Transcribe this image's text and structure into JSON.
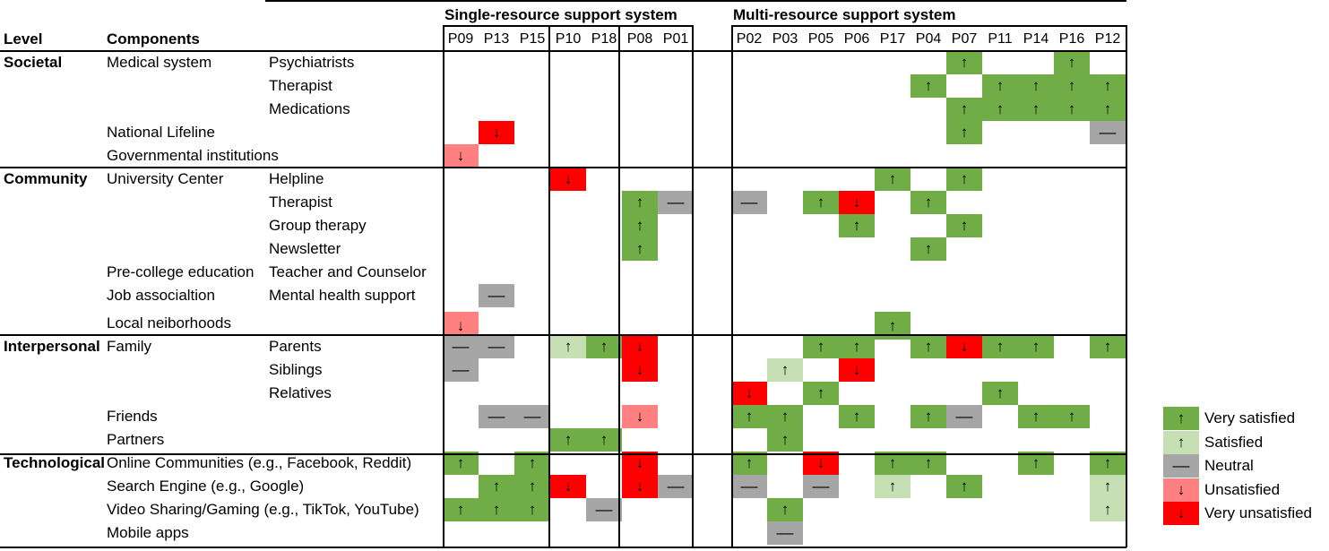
{
  "groups": {
    "single": "Single-resource support system",
    "multi": "Multi-resource support system"
  },
  "headers": {
    "level": "Level",
    "components": "Components"
  },
  "participants": [
    "P09",
    "P13",
    "P15",
    "P10",
    "P18",
    "P08",
    "P01",
    "P02",
    "P03",
    "P05",
    "P06",
    "P17",
    "P04",
    "P07",
    "P11",
    "P14",
    "P16",
    "P12"
  ],
  "levels": [
    "Societal",
    "Community",
    "Interpersonal",
    "Technological"
  ],
  "rows": [
    {
      "level": "Societal",
      "component": "Medical system",
      "sub": "Psychiatrists"
    },
    {
      "level": "",
      "component": "",
      "sub": "Therapist"
    },
    {
      "level": "",
      "component": "",
      "sub": "Medications"
    },
    {
      "level": "",
      "component": "National Lifeline",
      "sub": ""
    },
    {
      "level": "",
      "component": "Governmental institutions",
      "sub": ""
    },
    {
      "level": "Community",
      "component": "University Center",
      "sub": "Helpline"
    },
    {
      "level": "",
      "component": "",
      "sub": "Therapist"
    },
    {
      "level": "",
      "component": "",
      "sub": "Group therapy"
    },
    {
      "level": "",
      "component": "",
      "sub": "Newsletter"
    },
    {
      "level": "",
      "component": "Pre-college education",
      "sub": "Teacher and Counselor"
    },
    {
      "level": "",
      "component": "Job associaltion",
      "sub": "Mental health support"
    },
    {
      "level": "",
      "component": "Local neiborhoods",
      "sub": ""
    },
    {
      "level": "Interpersonal",
      "component": "Family",
      "sub": "Parents"
    },
    {
      "level": "",
      "component": "",
      "sub": "Siblings"
    },
    {
      "level": "",
      "component": "",
      "sub": "Relatives"
    },
    {
      "level": "",
      "component": "Friends",
      "sub": ""
    },
    {
      "level": "",
      "component": "Partners",
      "sub": ""
    },
    {
      "level": "Technological",
      "component": "Online Communities (e.g., Facebook, Reddit)",
      "sub": ""
    },
    {
      "level": "",
      "component": "Search Engine (e.g., Google)",
      "sub": ""
    },
    {
      "level": "",
      "component": "Video Sharing/Gaming (e.g., TikTok, YouTube)",
      "sub": ""
    },
    {
      "level": "",
      "component": "Mobile apps",
      "sub": ""
    }
  ],
  "ratings": {
    "vs": {
      "symbol": "↑",
      "color": "#70ad47",
      "label": "Very satisfied"
    },
    "s": {
      "symbol": "↑",
      "color": "#c6e0b4",
      "label": "Satisfied"
    },
    "n": {
      "symbol": "‒‒",
      "color": "#a6a6a6",
      "label": "Neutral"
    },
    "u": {
      "symbol": "↓",
      "color": "#ff8080",
      "label": "Unsatisfied"
    },
    "vu": {
      "symbol": "↓",
      "color": "#ff0000",
      "label": "Very unsatisfied"
    }
  },
  "legend_order": [
    "vs",
    "s",
    "n",
    "u",
    "vu"
  ],
  "cells": [
    {
      "r": 0,
      "p": "P07",
      "v": "vs"
    },
    {
      "r": 0,
      "p": "P16",
      "v": "vs"
    },
    {
      "r": 1,
      "p": "P04",
      "v": "vs"
    },
    {
      "r": 1,
      "p": "P11",
      "v": "vs"
    },
    {
      "r": 1,
      "p": "P14",
      "v": "vs"
    },
    {
      "r": 1,
      "p": "P16",
      "v": "vs"
    },
    {
      "r": 1,
      "p": "P12",
      "v": "vs"
    },
    {
      "r": 2,
      "p": "P07",
      "v": "vs"
    },
    {
      "r": 2,
      "p": "P11",
      "v": "vs"
    },
    {
      "r": 2,
      "p": "P14",
      "v": "vs"
    },
    {
      "r": 2,
      "p": "P16",
      "v": "vs"
    },
    {
      "r": 2,
      "p": "P12",
      "v": "vs"
    },
    {
      "r": 3,
      "p": "P13",
      "v": "vu"
    },
    {
      "r": 3,
      "p": "P07",
      "v": "vs"
    },
    {
      "r": 3,
      "p": "P12",
      "v": "n"
    },
    {
      "r": 4,
      "p": "P09",
      "v": "u"
    },
    {
      "r": 5,
      "p": "P10",
      "v": "vu"
    },
    {
      "r": 5,
      "p": "P17",
      "v": "vs"
    },
    {
      "r": 5,
      "p": "P07",
      "v": "vs"
    },
    {
      "r": 6,
      "p": "P08",
      "v": "vs"
    },
    {
      "r": 6,
      "p": "P01",
      "v": "n"
    },
    {
      "r": 6,
      "p": "P02",
      "v": "n"
    },
    {
      "r": 6,
      "p": "P05",
      "v": "vs"
    },
    {
      "r": 6,
      "p": "P06",
      "v": "vu"
    },
    {
      "r": 6,
      "p": "P04",
      "v": "vs"
    },
    {
      "r": 7,
      "p": "P08",
      "v": "vs"
    },
    {
      "r": 7,
      "p": "P06",
      "v": "vs"
    },
    {
      "r": 7,
      "p": "P07",
      "v": "vs"
    },
    {
      "r": 8,
      "p": "P08",
      "v": "vs"
    },
    {
      "r": 8,
      "p": "P04",
      "v": "vs"
    },
    {
      "r": 10,
      "p": "P13",
      "v": "n"
    },
    {
      "r": 11,
      "p": "P09",
      "v": "u"
    },
    {
      "r": 11,
      "p": "P17",
      "v": "vs"
    },
    {
      "r": 12,
      "p": "P09",
      "v": "n"
    },
    {
      "r": 12,
      "p": "P13",
      "v": "n"
    },
    {
      "r": 12,
      "p": "P10",
      "v": "s"
    },
    {
      "r": 12,
      "p": "P18",
      "v": "vs"
    },
    {
      "r": 12,
      "p": "P08",
      "v": "vu"
    },
    {
      "r": 12,
      "p": "P05",
      "v": "vs"
    },
    {
      "r": 12,
      "p": "P06",
      "v": "vs"
    },
    {
      "r": 12,
      "p": "P04",
      "v": "vs"
    },
    {
      "r": 12,
      "p": "P07",
      "v": "vu"
    },
    {
      "r": 12,
      "p": "P11",
      "v": "vs"
    },
    {
      "r": 12,
      "p": "P14",
      "v": "vs"
    },
    {
      "r": 12,
      "p": "P12",
      "v": "vs"
    },
    {
      "r": 13,
      "p": "P09",
      "v": "n"
    },
    {
      "r": 13,
      "p": "P08",
      "v": "vu"
    },
    {
      "r": 13,
      "p": "P03",
      "v": "s"
    },
    {
      "r": 13,
      "p": "P06",
      "v": "vu"
    },
    {
      "r": 14,
      "p": "P02",
      "v": "vu"
    },
    {
      "r": 14,
      "p": "P05",
      "v": "vs"
    },
    {
      "r": 14,
      "p": "P11",
      "v": "vs"
    },
    {
      "r": 15,
      "p": "P13",
      "v": "n"
    },
    {
      "r": 15,
      "p": "P15",
      "v": "n"
    },
    {
      "r": 15,
      "p": "P08",
      "v": "u"
    },
    {
      "r": 15,
      "p": "P02",
      "v": "vs"
    },
    {
      "r": 15,
      "p": "P03",
      "v": "vs"
    },
    {
      "r": 15,
      "p": "P06",
      "v": "vs"
    },
    {
      "r": 15,
      "p": "P04",
      "v": "vs"
    },
    {
      "r": 15,
      "p": "P07",
      "v": "n"
    },
    {
      "r": 15,
      "p": "P14",
      "v": "vs"
    },
    {
      "r": 15,
      "p": "P16",
      "v": "vs"
    },
    {
      "r": 16,
      "p": "P10",
      "v": "vs"
    },
    {
      "r": 16,
      "p": "P18",
      "v": "vs"
    },
    {
      "r": 16,
      "p": "P03",
      "v": "vs"
    },
    {
      "r": 17,
      "p": "P09",
      "v": "vs"
    },
    {
      "r": 17,
      "p": "P15",
      "v": "vs"
    },
    {
      "r": 17,
      "p": "P08",
      "v": "vu"
    },
    {
      "r": 17,
      "p": "P02",
      "v": "vs"
    },
    {
      "r": 17,
      "p": "P05",
      "v": "vu"
    },
    {
      "r": 17,
      "p": "P17",
      "v": "vs"
    },
    {
      "r": 17,
      "p": "P04",
      "v": "vs"
    },
    {
      "r": 17,
      "p": "P14",
      "v": "vs"
    },
    {
      "r": 17,
      "p": "P12",
      "v": "vs"
    },
    {
      "r": 18,
      "p": "P13",
      "v": "vs"
    },
    {
      "r": 18,
      "p": "P15",
      "v": "vs"
    },
    {
      "r": 18,
      "p": "P10",
      "v": "vu"
    },
    {
      "r": 18,
      "p": "P08",
      "v": "vu"
    },
    {
      "r": 18,
      "p": "P01",
      "v": "n"
    },
    {
      "r": 18,
      "p": "P02",
      "v": "n"
    },
    {
      "r": 18,
      "p": "P05",
      "v": "n"
    },
    {
      "r": 18,
      "p": "P17",
      "v": "s"
    },
    {
      "r": 18,
      "p": "P07",
      "v": "vs"
    },
    {
      "r": 18,
      "p": "P12",
      "v": "s"
    },
    {
      "r": 19,
      "p": "P09",
      "v": "vs"
    },
    {
      "r": 19,
      "p": "P13",
      "v": "vs"
    },
    {
      "r": 19,
      "p": "P15",
      "v": "vs"
    },
    {
      "r": 19,
      "p": "P18",
      "v": "n"
    },
    {
      "r": 19,
      "p": "P03",
      "v": "vs"
    },
    {
      "r": 19,
      "p": "P12",
      "v": "s"
    },
    {
      "r": 20,
      "p": "P03",
      "v": "n"
    }
  ]
}
